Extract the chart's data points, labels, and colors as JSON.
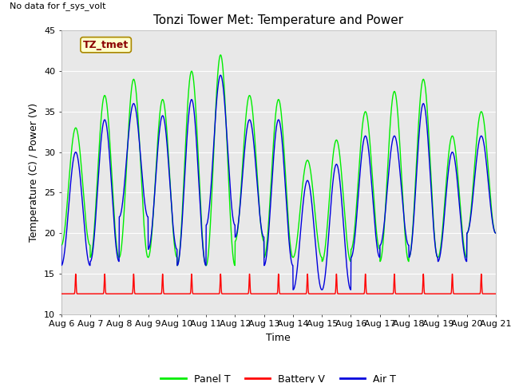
{
  "title": "Tonzi Tower Met: Temperature and Power",
  "xlabel": "Time",
  "ylabel": "Temperature (C) / Power (V)",
  "no_data_text": "No data for f_sys_volt",
  "annotation_text": "TZ_tmet",
  "ylim": [
    10,
    45
  ],
  "yticks": [
    10,
    15,
    20,
    25,
    30,
    35,
    40,
    45
  ],
  "date_labels": [
    "Aug 6",
    "Aug 7",
    "Aug 8",
    "Aug 9",
    "Aug 10",
    "Aug 11",
    "Aug 12",
    "Aug 13",
    "Aug 14",
    "Aug 15",
    "Aug 16",
    "Aug 17",
    "Aug 18",
    "Aug 19",
    "Aug 20",
    "Aug 21"
  ],
  "plot_bg_color": "#e8e8e8",
  "panel_t_color": "#00ee00",
  "battery_v_color": "#ff0000",
  "air_t_color": "#0000dd",
  "legend_labels": [
    "Panel T",
    "Battery V",
    "Air T"
  ],
  "figsize": [
    6.4,
    4.8
  ],
  "dpi": 100
}
